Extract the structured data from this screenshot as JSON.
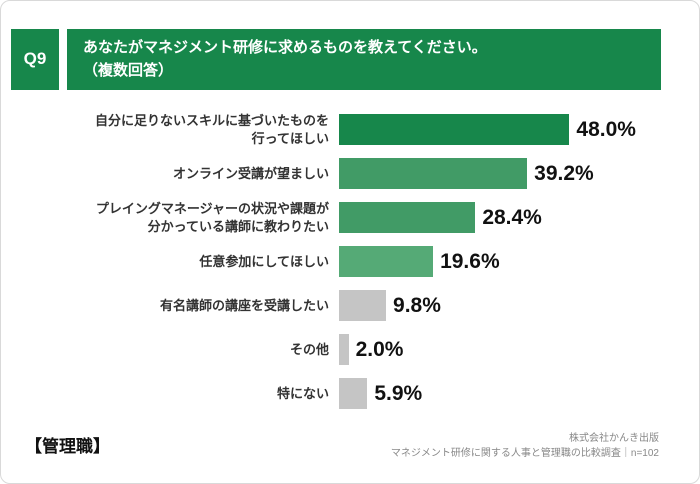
{
  "header": {
    "question_no": "Q9",
    "title_line1": "あなたがマネジメント研修に求めるものを教えてください。",
    "title_line2": "（複数回答）"
  },
  "footer": {
    "group_label": "【管理職】",
    "source_line1": "株式会社かんき出版",
    "source_line2": "マネジメント研修に関する人事と管理職の比較調査｜n=102"
  },
  "colors": {
    "header_green": "#17874b",
    "gray_bar": "#c5c5c5"
  },
  "chart_data": {
    "type": "bar",
    "orientation": "horizontal",
    "title": "あなたがマネジメント研修に求めるものを教えてください。（複数回答）",
    "xlabel": "",
    "ylabel": "",
    "xlim": [
      0,
      50
    ],
    "grid": false,
    "legend": "none",
    "categories": [
      "自分に足りないスキルに基づいたものを\n行ってほしい",
      "オンライン受講が望ましい",
      "プレイングマネージャーの状況や課題が\n分かっている講師に教わりたい",
      "任意参加にしてほしい",
      "有名講師の講座を受講したい",
      "その他",
      "特にない"
    ],
    "values": [
      48.0,
      39.2,
      28.4,
      19.6,
      9.8,
      2.0,
      5.9
    ],
    "value_labels": [
      "48.0%",
      "39.2%",
      "28.4%",
      "19.6%",
      "9.8%",
      "2.0%",
      "5.9%"
    ],
    "bar_colors": [
      "#17874b",
      "#419b66",
      "#419b66",
      "#55aa76",
      "#c5c5c5",
      "#c5c5c5",
      "#c5c5c5"
    ]
  }
}
